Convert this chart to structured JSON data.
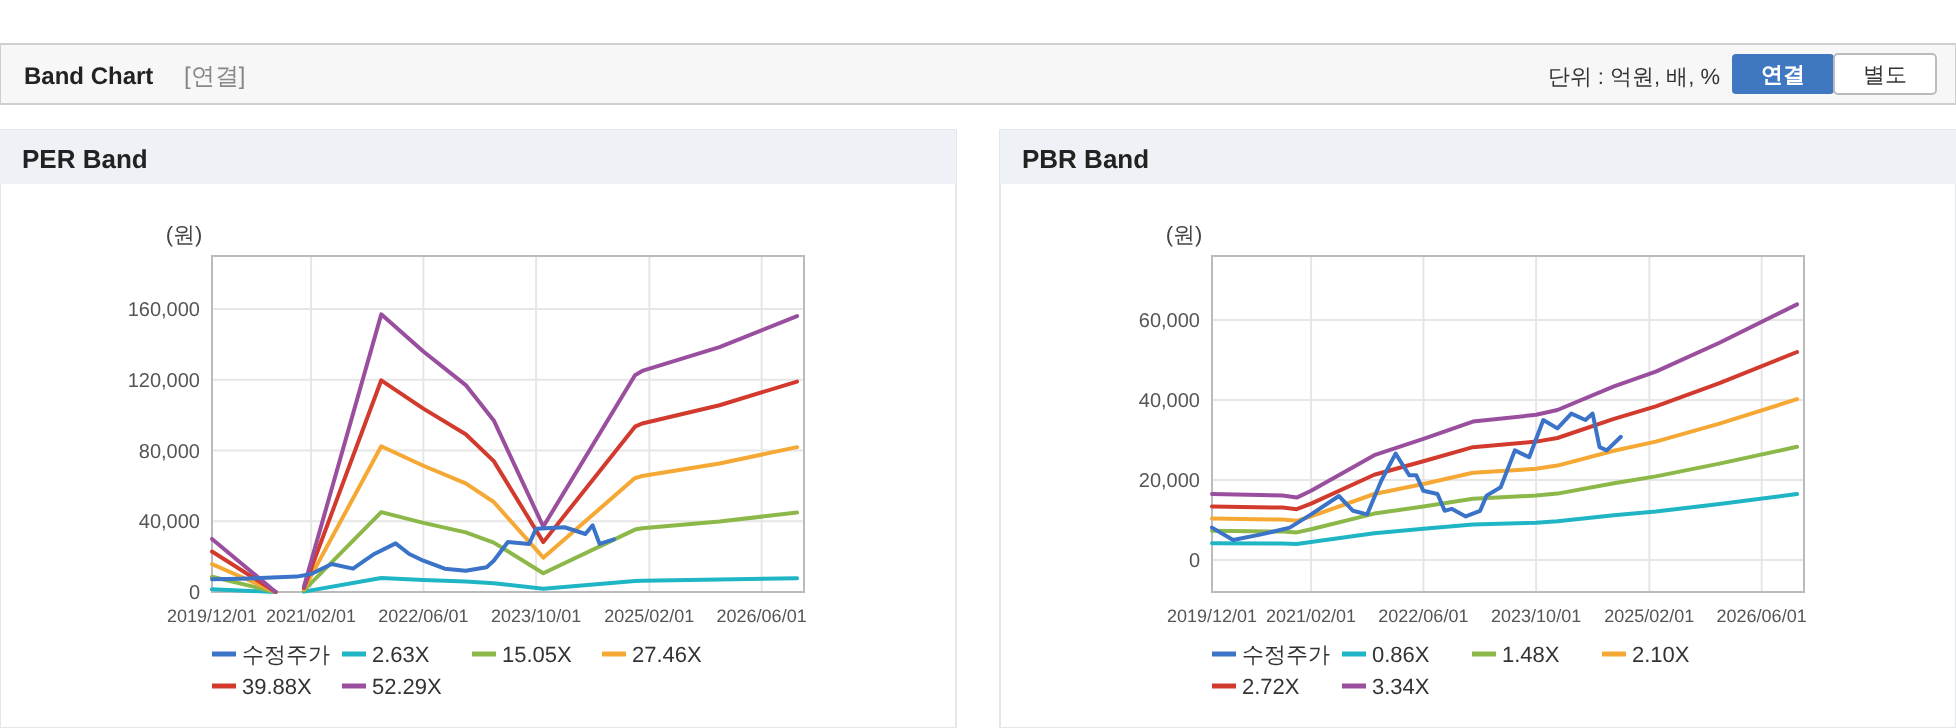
{
  "chart_data": [
    {
      "type": "other",
      "title": "Band Chart",
      "annotations": [
        "[연결]",
        "단위 : 억원, 배, %",
        "연결",
        "별도"
      ]
    },
    {
      "type": "line",
      "title": "PER Band",
      "ylabel": "(원)",
      "grid": true,
      "legend": "bottom",
      "xlim": [
        "2019-12-01",
        "2026-12-01"
      ],
      "xticks": [
        {
          "value": "2019-12-01",
          "label": "2019/12/01"
        },
        {
          "value": "2021-02-01",
          "label": "2021/02/01"
        },
        {
          "value": "2022-06-01",
          "label": "2022/06/01"
        },
        {
          "value": "2023-10-01",
          "label": "2023/10/01"
        },
        {
          "value": "2025-02-01",
          "label": "2025/02/01"
        },
        {
          "value": "2026-06-01",
          "label": "2026/06/01"
        }
      ],
      "ylim": [
        0,
        190000
      ],
      "yticks": [
        0,
        {
          "value": 40000,
          "label": "40,000"
        },
        {
          "value": 80000,
          "label": "80,000"
        },
        {
          "value": 120000,
          "label": "120,000"
        },
        {
          "value": 160000,
          "label": "160,000"
        }
      ],
      "x": [
        "2019-12",
        "2020-09",
        "2020-11",
        "2021-01",
        "2021-12",
        "2022-06",
        "2022-12",
        "2023-04",
        "2023-11",
        "2024-12",
        "2025-01",
        "2025-12",
        "2026-11"
      ],
      "series": [
        {
          "name": "수정주가",
          "color": "#3a73c8",
          "x": [
            "2019-12",
            "2020-04",
            "2020-12",
            "2021-02",
            "2021-05",
            "2021-08",
            "2021-11",
            "2022-02",
            "2022-04",
            "2022-06",
            "2022-09",
            "2022-12",
            "2023-03",
            "2023-04",
            "2023-06",
            "2023-09",
            "2023-10",
            "2024-02",
            "2024-05",
            "2024-06",
            "2024-07",
            "2024-09"
          ],
          "values": [
            7200,
            7500,
            8700,
            10200,
            15800,
            13200,
            21500,
            27500,
            21500,
            17700,
            13200,
            12000,
            14000,
            17700,
            28300,
            27200,
            35800,
            36600,
            32800,
            37700,
            27200,
            29800
          ]
        },
        {
          "name": "2.63X",
          "color": "#1fb5c5",
          "values": [
            1500,
            0,
            null,
            200,
            7900,
            6800,
            5900,
            4900,
            1900,
            6200,
            6300,
            7000,
            7800
          ]
        },
        {
          "name": "15.05X",
          "color": "#8cb84a",
          "values": [
            8600,
            0,
            null,
            900,
            45200,
            39100,
            33700,
            27900,
            10600,
            35300,
            36000,
            39900,
            44900
          ]
        },
        {
          "name": "27.46X",
          "color": "#f5a833",
          "values": [
            15800,
            0,
            null,
            1600,
            82400,
            71400,
            61400,
            50900,
            19400,
            64400,
            65600,
            72700,
            81900
          ]
        },
        {
          "name": "39.88X",
          "color": "#d23a2e",
          "values": [
            22900,
            0,
            null,
            2300,
            119700,
            103700,
            89200,
            74000,
            28200,
            93500,
            95300,
            105600,
            119000
          ]
        },
        {
          "name": "52.29X",
          "color": "#9a4f9e",
          "values": [
            30000,
            0,
            null,
            3000,
            157000,
            136000,
            117000,
            97000,
            37000,
            122600,
            125000,
            138500,
            156000
          ]
        }
      ]
    },
    {
      "type": "line",
      "title": "PBR Band",
      "ylabel": "(원)",
      "grid": true,
      "legend": "bottom",
      "xlim": [
        "2019-12-01",
        "2026-12-01"
      ],
      "xticks": [
        {
          "value": "2019-12-01",
          "label": "2019/12/01"
        },
        {
          "value": "2021-02-01",
          "label": "2021/02/01"
        },
        {
          "value": "2022-06-01",
          "label": "2022/06/01"
        },
        {
          "value": "2023-10-01",
          "label": "2023/10/01"
        },
        {
          "value": "2025-02-01",
          "label": "2025/02/01"
        },
        {
          "value": "2026-06-01",
          "label": "2026/06/01"
        }
      ],
      "ylim": [
        -8000,
        76000
      ],
      "yticks": [
        0,
        {
          "value": 20000,
          "label": "20,000"
        },
        {
          "value": 40000,
          "label": "40,000"
        },
        {
          "value": 60000,
          "label": "60,000"
        }
      ],
      "x": [
        "2019-12",
        "2020-10",
        "2020-12",
        "2021-02",
        "2021-11",
        "2022-06",
        "2023-01",
        "2023-10",
        "2024-01",
        "2024-09",
        "2025-03",
        "2025-12",
        "2026-11"
      ],
      "series": [
        {
          "name": "수정주가",
          "color": "#3a73c8",
          "x": [
            "2019-12",
            "2020-03",
            "2020-07",
            "2020-11",
            "2021-02",
            "2021-06",
            "2021-08",
            "2021-10",
            "2021-12",
            "2022-02",
            "2022-04",
            "2022-05",
            "2022-06",
            "2022-08",
            "2022-09",
            "2022-10",
            "2022-12",
            "2023-02",
            "2023-03",
            "2023-05",
            "2023-07",
            "2023-09",
            "2023-11",
            "2024-01",
            "2024-03",
            "2024-05",
            "2024-06",
            "2024-07",
            "2024-08",
            "2024-10"
          ],
          "values": [
            8100,
            5000,
            6400,
            8100,
            11400,
            16000,
            12300,
            11400,
            19800,
            26600,
            21200,
            21200,
            17300,
            16500,
            12300,
            12800,
            10900,
            12300,
            16100,
            18200,
            27400,
            25700,
            35000,
            32900,
            36600,
            35000,
            36600,
            28200,
            27400,
            30800
          ]
        },
        {
          "name": "0.86X",
          "color": "#1fb5c5",
          "values": [
            4200,
            4100,
            4000,
            4500,
            6700,
            7800,
            8900,
            9300,
            9700,
            11200,
            12100,
            14000,
            16500
          ]
        },
        {
          "name": "1.48X",
          "color": "#8cb84a",
          "values": [
            7300,
            7100,
            6900,
            7700,
            11600,
            13400,
            15300,
            16100,
            16600,
            19200,
            20900,
            24100,
            28300
          ]
        },
        {
          "name": "2.10X",
          "color": "#f5a833",
          "values": [
            10400,
            10100,
            9800,
            10900,
            16500,
            19000,
            21800,
            22800,
            23600,
            27300,
            29600,
            34100,
            40200
          ]
        },
        {
          "name": "2.72X",
          "color": "#d23a2e",
          "values": [
            13400,
            13100,
            12700,
            14100,
            21300,
            24700,
            28200,
            29600,
            30500,
            35300,
            38400,
            44200,
            52000
          ]
        },
        {
          "name": "3.34X",
          "color": "#9a4f9e",
          "values": [
            16500,
            16100,
            15600,
            17300,
            26200,
            30300,
            34600,
            36300,
            37500,
            43400,
            47100,
            54300,
            63900
          ]
        }
      ]
    }
  ]
}
